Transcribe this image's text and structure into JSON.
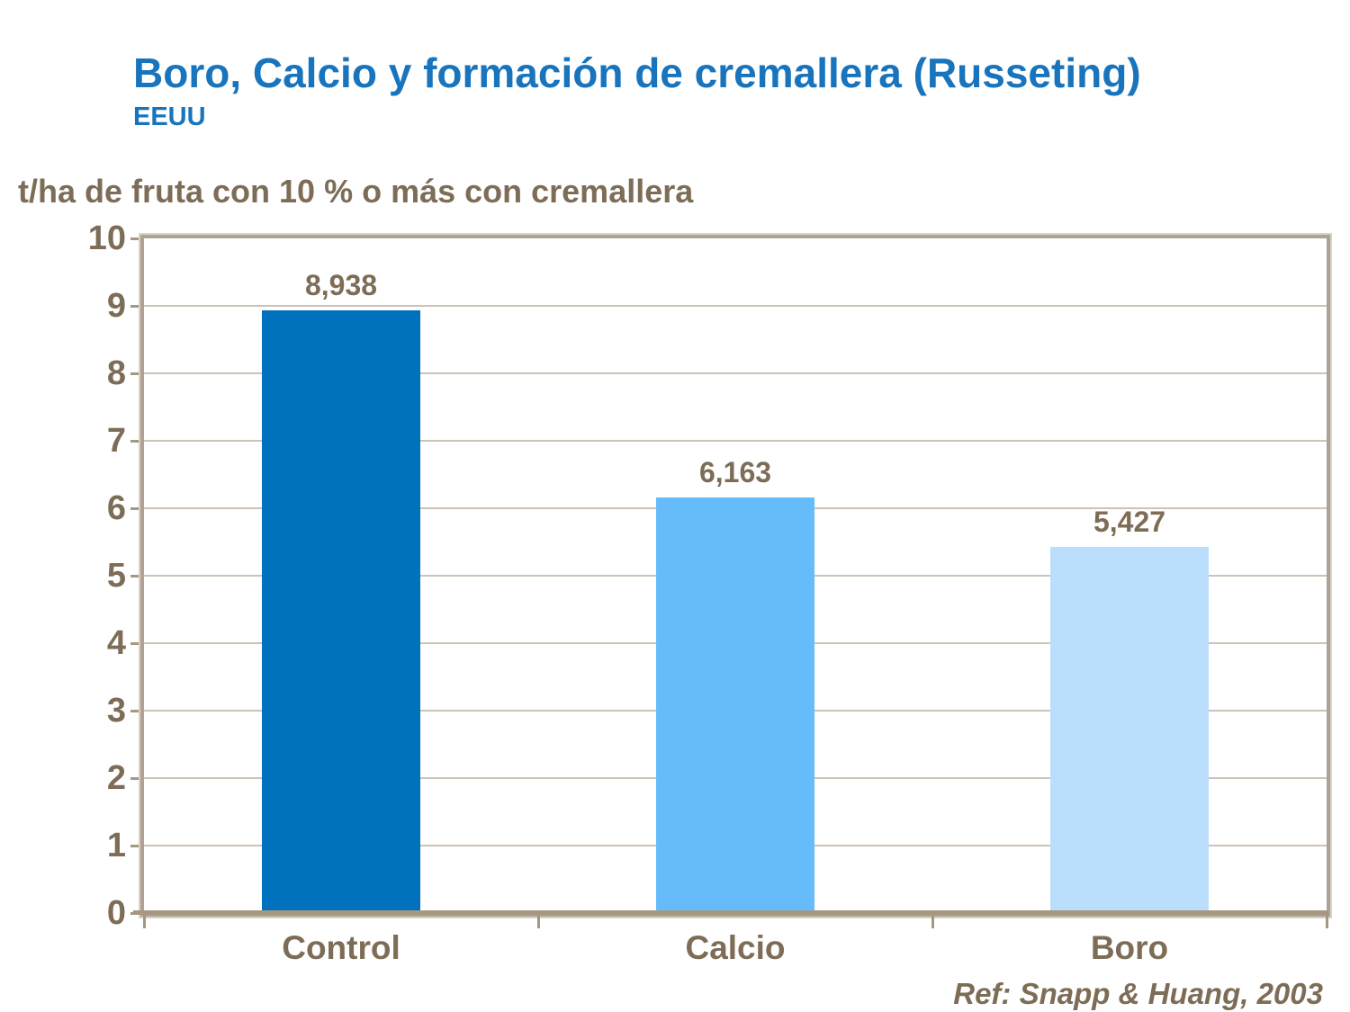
{
  "slide": {
    "title": "Boro, Calcio y formación de cremallera (Russeting)",
    "subtitle": "EEUU",
    "footer": "Ref: Snapp & Huang, 2003"
  },
  "chart_data": {
    "type": "bar",
    "title": "t/ha de fruta con 10 % o más con cremallera",
    "categories": [
      "Control",
      "Calcio",
      "Boro"
    ],
    "values": [
      8.938,
      6.163,
      5.427
    ],
    "value_labels": [
      "8,938",
      "6,163",
      "5,427"
    ],
    "bar_colors": [
      "#0071BC",
      "#66BBFB",
      "#BADEFB"
    ],
    "ylabel": "t/ha de fruta con 10 % o más con cremallera",
    "xlabel": "",
    "ylim": [
      0,
      10
    ],
    "ytick_step": 1,
    "grid": true,
    "legend": false
  },
  "theme": {
    "title_color": "#1874BC",
    "text_color": "#7D6D57",
    "plot_border_color": "#AFA193",
    "plot_border_light": "#D9D2C7",
    "gridline_color": "#CDC3B5",
    "axis_line_color": "#A69880",
    "background": "#FFFFFF"
  }
}
